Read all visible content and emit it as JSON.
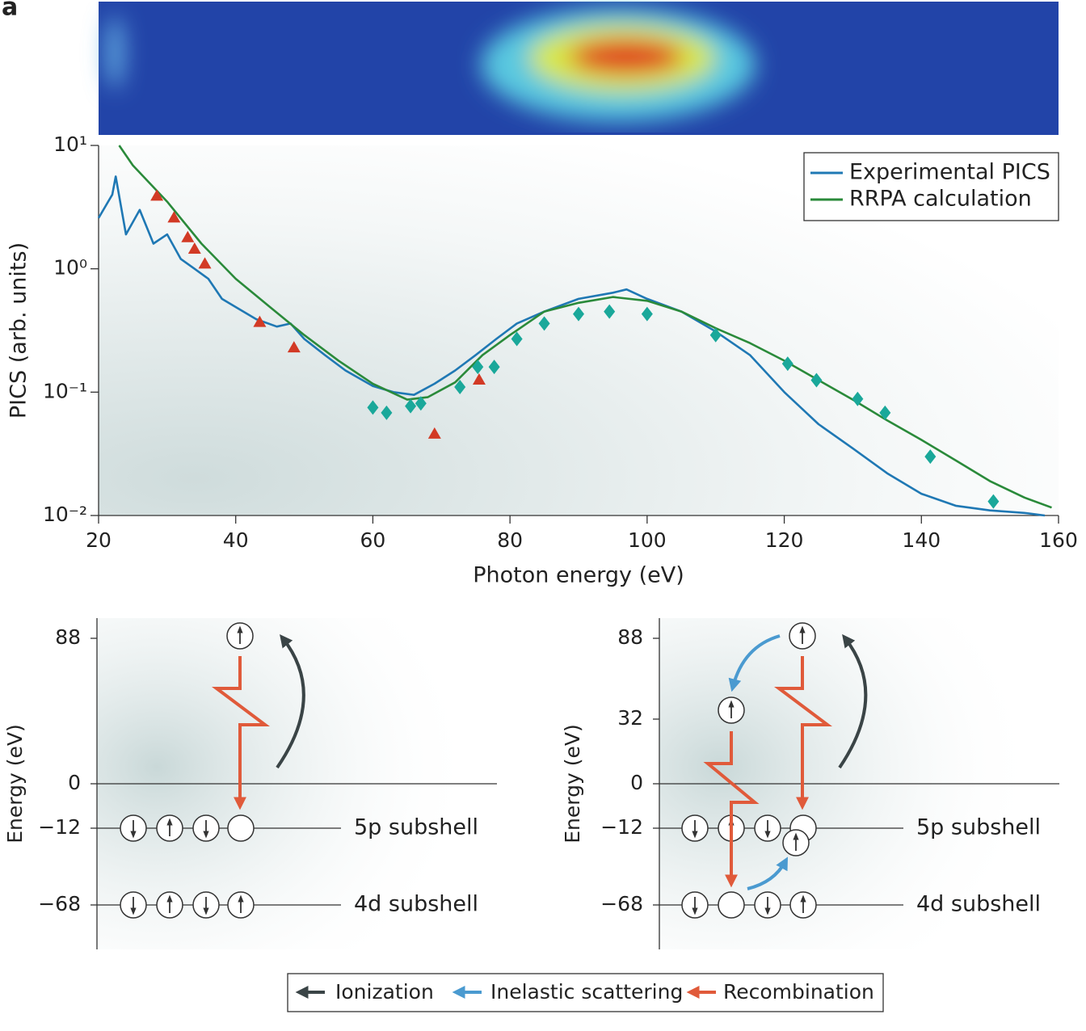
{
  "panel_label": "a",
  "chart_data": {
    "type": "line",
    "xlabel": "Photon energy (eV)",
    "ylabel": "PICS (arb. units)",
    "xlim": [
      20,
      160
    ],
    "xticks": [
      20,
      40,
      60,
      80,
      100,
      120,
      140,
      160
    ],
    "ylim": [
      0.01,
      10
    ],
    "yscale": "log",
    "yticks": [
      {
        "value": 10,
        "label": "10¹"
      },
      {
        "value": 1,
        "label": "10⁰"
      },
      {
        "value": 0.1,
        "label": "10⁻¹"
      },
      {
        "value": 0.01,
        "label": "10⁻²"
      }
    ],
    "legend": "upper right",
    "series": [
      {
        "name": "Experimental PICS",
        "color": "#1f78b4",
        "x": [
          20,
          22,
          22.5,
          24,
          26,
          28,
          30,
          32,
          34,
          36,
          38,
          40,
          43,
          46,
          48,
          50,
          53,
          56,
          60,
          63,
          66,
          69,
          72,
          75,
          78,
          81,
          85,
          90,
          95,
          97,
          100,
          105,
          110,
          115,
          120,
          125,
          130,
          135,
          140,
          145,
          150,
          155,
          158
        ],
        "values": [
          2.58,
          4.0,
          5.6,
          1.9,
          3.0,
          1.6,
          1.9,
          1.2,
          1.0,
          0.83,
          0.57,
          0.49,
          0.39,
          0.34,
          0.36,
          0.27,
          0.2,
          0.15,
          0.112,
          0.1,
          0.095,
          0.117,
          0.15,
          0.2,
          0.27,
          0.36,
          0.45,
          0.57,
          0.64,
          0.68,
          0.57,
          0.45,
          0.31,
          0.2,
          0.1,
          0.055,
          0.035,
          0.022,
          0.015,
          0.012,
          0.011,
          0.0105,
          0.01
        ]
      },
      {
        "name": "RRPA calculation",
        "color": "#2a8a3a",
        "x": [
          23,
          25,
          30,
          35,
          40,
          45,
          50,
          55,
          60,
          65,
          68,
          72,
          76,
          80,
          85,
          90,
          95,
          100,
          105,
          110,
          115,
          120,
          125,
          130,
          135,
          140,
          145,
          150,
          155,
          159
        ],
        "values": [
          10,
          6.9,
          3.5,
          1.6,
          0.83,
          0.49,
          0.29,
          0.18,
          0.117,
          0.087,
          0.091,
          0.12,
          0.2,
          0.29,
          0.45,
          0.53,
          0.59,
          0.55,
          0.45,
          0.33,
          0.25,
          0.18,
          0.125,
          0.087,
          0.059,
          0.041,
          0.028,
          0.019,
          0.014,
          0.0116
        ]
      },
      {
        "marker": "triangle",
        "color": "#d23a25",
        "x": [
          28.5,
          31,
          33,
          34,
          35.5,
          43.5,
          48.5,
          69,
          75.5
        ],
        "values": [
          3.9,
          2.6,
          1.8,
          1.45,
          1.1,
          0.37,
          0.23,
          0.046,
          0.126
        ]
      },
      {
        "marker": "diamond",
        "color": "#1aa89a",
        "x": [
          60,
          62,
          65.5,
          67,
          72.7,
          75.3,
          77.7,
          81,
          85,
          90,
          94.5,
          100,
          110,
          120.5,
          124.7,
          130.7,
          134.7,
          141.3,
          150.5
        ],
        "values": [
          0.075,
          0.068,
          0.077,
          0.081,
          0.11,
          0.16,
          0.16,
          0.27,
          0.36,
          0.43,
          0.45,
          0.43,
          0.29,
          0.17,
          0.125,
          0.088,
          0.068,
          0.03,
          0.013
        ]
      }
    ]
  },
  "diagrams": [
    {
      "ylabel": "Energy (eV)",
      "ticks": [
        "88",
        "0",
        "−12",
        "−68"
      ],
      "levels": [
        "5p subshell",
        "4d subshell"
      ]
    },
    {
      "ylabel": "Energy (eV)",
      "ticks": [
        "88",
        "32",
        "0",
        "−12",
        "−68"
      ],
      "levels": [
        "5p subshell",
        "4d subshell"
      ]
    }
  ],
  "process_legend": [
    "Ionization",
    "Inelastic scattering",
    "Recombination"
  ]
}
